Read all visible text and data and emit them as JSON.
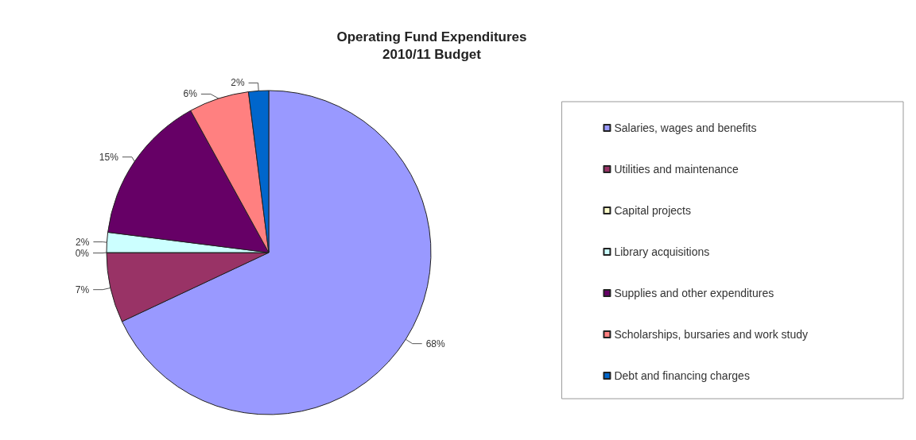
{
  "chart_data": {
    "type": "pie",
    "title": "Operating Fund Expenditures\n2010/11 Budget",
    "categories": [
      "Salaries, wages and benefits",
      "Utilities and maintenance",
      "Capital projects",
      "Library acquisitions",
      "Supplies and other expenditures",
      "Scholarships, bursaries and work study",
      "Debt and financing charges"
    ],
    "values": [
      68,
      7,
      0,
      2,
      15,
      6,
      2
    ],
    "value_labels": [
      "68%",
      "7%",
      "0%",
      "2%",
      "15%",
      "6%",
      "2%"
    ],
    "colors": [
      "#9999ff",
      "#993366",
      "#ffffcc",
      "#ccffff",
      "#660066",
      "#ff8080",
      "#0066cc"
    ],
    "legend": "right"
  }
}
